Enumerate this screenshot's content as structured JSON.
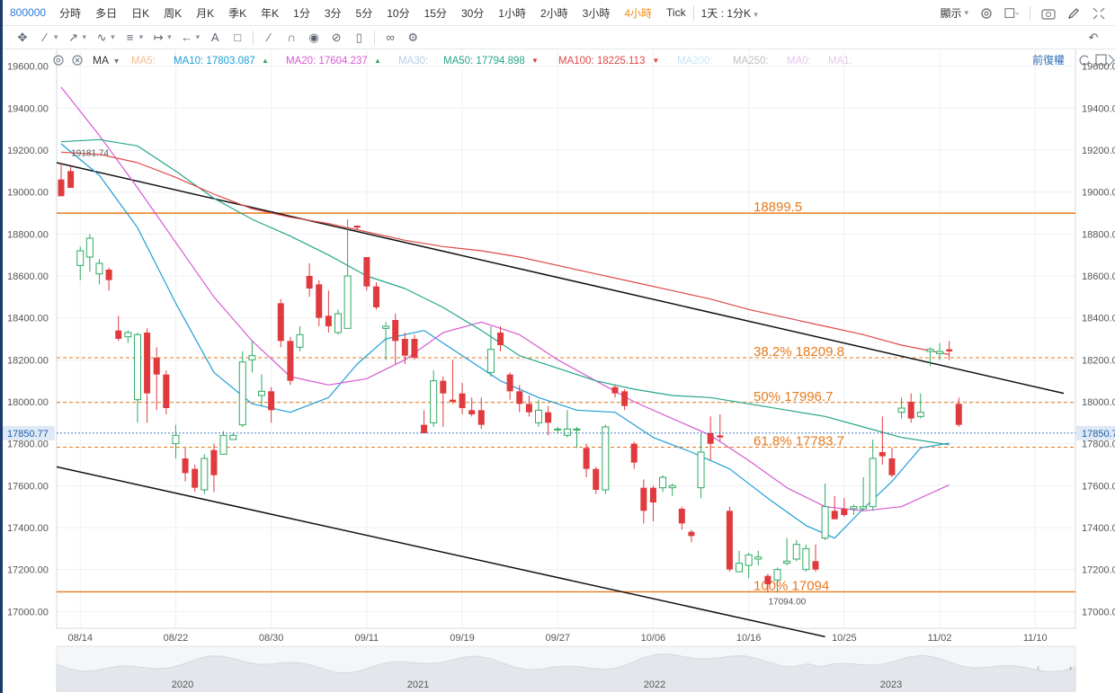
{
  "toolbar": {
    "symbol": "800000",
    "intervals": [
      "分時",
      "多日",
      "日K",
      "周K",
      "月K",
      "季K",
      "年K",
      "1分",
      "3分",
      "5分",
      "10分",
      "15分",
      "30分",
      "1小時",
      "2小時",
      "3小時",
      "4小時",
      "Tick"
    ],
    "active_interval": "4小時",
    "period_select": "1天 : 1分K",
    "display_label": "顯示"
  },
  "indicator_bar": {
    "name": "MA",
    "items": [
      {
        "label": "MA5:",
        "value": "",
        "color": "#f3c08e",
        "arrow": ""
      },
      {
        "label": "MA10:",
        "value": "17803.087",
        "color": "#1e9ed6",
        "arrow": "▲"
      },
      {
        "label": "MA20:",
        "value": "17604.237",
        "color": "#d65ad3",
        "arrow": "▲"
      },
      {
        "label": "MA30:",
        "value": "",
        "color": "#b8cde8",
        "arrow": ""
      },
      {
        "label": "MA50:",
        "value": "17794.898",
        "color": "#26a58a",
        "arrow": "▼"
      },
      {
        "label": "MA100:",
        "value": "18225.113",
        "color": "#e04848",
        "arrow": "▼"
      },
      {
        "label": "MA200:",
        "value": "",
        "color": "#c9e4f5",
        "arrow": ""
      },
      {
        "label": "MA250:",
        "value": "",
        "color": "#bfbfbf",
        "arrow": ""
      },
      {
        "label": "MA0:",
        "value": "",
        "color": "#e5c9ee",
        "arrow": ""
      },
      {
        "label": "MA1:",
        "value": "",
        "color": "#e5c9ee",
        "arrow": ""
      }
    ],
    "adjust_label": "前復權"
  },
  "chart_data": {
    "type": "candlestick",
    "ylim": [
      16920,
      19680
    ],
    "y_ticks": [
      "17000.00",
      "17200.00",
      "17400.00",
      "17600.00",
      "17800.00",
      "18000.00",
      "18200.00",
      "18400.00",
      "18600.00",
      "18800.00",
      "19000.00",
      "19200.00",
      "19400.00",
      "19600.00"
    ],
    "x_ticks": [
      "08/14",
      "08/22",
      "08/30",
      "09/11",
      "09/19",
      "09/27",
      "10/06",
      "10/16",
      "10/25",
      "11/02",
      "11/10"
    ],
    "x_tick_index": [
      2,
      12,
      22,
      32,
      42,
      52,
      62,
      72,
      82,
      92,
      102
    ],
    "current_price": "17850.77",
    "candles": [
      [
        19060,
        18980,
        19140,
        19040
      ],
      [
        19100,
        19020,
        19120,
        19060
      ],
      [
        18650,
        18720,
        18740,
        18580
      ],
      [
        18690,
        18780,
        18800,
        18620
      ],
      [
        18610,
        18660,
        18680,
        18560
      ],
      [
        18630,
        18580,
        18640,
        18530
      ],
      [
        18340,
        18300,
        18410,
        18290
      ],
      [
        18310,
        18330,
        18340,
        18280
      ],
      [
        18010,
        18320,
        18330,
        17900
      ],
      [
        18330,
        18040,
        18350,
        17900
      ],
      [
        18210,
        18130,
        18260,
        17960
      ],
      [
        18130,
        17970,
        18150,
        17940
      ],
      [
        17800,
        17840,
        17890,
        17730
      ],
      [
        17730,
        17660,
        17780,
        17620
      ],
      [
        17680,
        17590,
        17700,
        17570
      ],
      [
        17580,
        17730,
        17750,
        17560
      ],
      [
        17770,
        17650,
        17800,
        17570
      ],
      [
        17750,
        17840,
        17860,
        17750
      ],
      [
        17820,
        17840,
        17850,
        17820
      ],
      [
        17890,
        18190,
        18240,
        17880
      ],
      [
        18200,
        18220,
        18290,
        18140
      ],
      [
        18030,
        18050,
        18130,
        17980
      ],
      [
        18050,
        17960,
        18070,
        17900
      ],
      [
        18470,
        18290,
        18490,
        18260
      ],
      [
        18290,
        18100,
        18310,
        18080
      ],
      [
        18260,
        18320,
        18360,
        18240
      ],
      [
        18600,
        18540,
        18660,
        18500
      ],
      [
        18560,
        18400,
        18580,
        18360
      ],
      [
        18410,
        18360,
        18530,
        18330
      ],
      [
        18330,
        18420,
        18440,
        18320
      ],
      [
        18350,
        18600,
        18870,
        18560
      ],
      [
        18840,
        18830,
        18840,
        18820
      ],
      [
        18690,
        18550,
        18690,
        18530
      ],
      [
        18550,
        18450,
        18570,
        18440
      ],
      [
        18350,
        18360,
        18380,
        18200
      ],
      [
        18390,
        18290,
        18420,
        18180
      ],
      [
        18300,
        18220,
        18330,
        18180
      ],
      [
        18300,
        18210,
        18320,
        18200
      ],
      [
        17890,
        17850,
        17960,
        17850
      ],
      [
        17900,
        18100,
        18150,
        17880
      ],
      [
        18100,
        18040,
        18120,
        17880
      ],
      [
        18010,
        18000,
        18200,
        17990
      ],
      [
        18040,
        17970,
        18090,
        17940
      ],
      [
        17960,
        17940,
        18020,
        17930
      ],
      [
        17960,
        17890,
        18020,
        17870
      ],
      [
        18140,
        18250,
        18360,
        18120
      ],
      [
        18330,
        18270,
        18360,
        18240
      ],
      [
        18130,
        18050,
        18140,
        18010
      ],
      [
        18050,
        17990,
        18080,
        17950
      ],
      [
        17990,
        17950,
        18030,
        17930
      ],
      [
        17900,
        17960,
        18010,
        17880
      ],
      [
        17950,
        17900,
        17980,
        17840
      ],
      [
        17870,
        17870,
        17880,
        17850
      ],
      [
        17840,
        17870,
        17960,
        17830
      ],
      [
        17870,
        17870,
        17880,
        17780
      ],
      [
        17780,
        17680,
        17800,
        17640
      ],
      [
        17680,
        17580,
        17690,
        17560
      ],
      [
        17580,
        17880,
        17890,
        17560
      ],
      [
        18070,
        18040,
        18080,
        18020
      ],
      [
        18050,
        17980,
        18060,
        17960
      ],
      [
        17800,
        17710,
        17810,
        17680
      ],
      [
        17590,
        17480,
        17630,
        17420
      ],
      [
        17590,
        17520,
        17600,
        17430
      ],
      [
        17590,
        17640,
        17650,
        17570
      ],
      [
        17590,
        17600,
        17610,
        17550
      ],
      [
        17490,
        17420,
        17500,
        17390
      ],
      [
        17380,
        17360,
        17390,
        17330
      ],
      [
        17590,
        17760,
        17850,
        17540
      ],
      [
        17850,
        17800,
        17930,
        17720
      ],
      [
        17840,
        17830,
        17940,
        17810
      ],
      [
        17480,
        17200,
        17500,
        17190
      ],
      [
        17190,
        17230,
        17290,
        17190
      ],
      [
        17220,
        17270,
        17280,
        17160
      ],
      [
        17250,
        17260,
        17290,
        17220
      ],
      [
        17170,
        17130,
        17180,
        17090
      ],
      [
        17150,
        17200,
        17210,
        17090
      ],
      [
        17230,
        17240,
        17350,
        17220
      ],
      [
        17250,
        17320,
        17340,
        17240
      ],
      [
        17200,
        17300,
        17320,
        17190
      ],
      [
        17240,
        17200,
        17320,
        17190
      ],
      [
        17350,
        17500,
        17610,
        17340
      ],
      [
        17480,
        17440,
        17550,
        17440
      ],
      [
        17490,
        17460,
        17540,
        17450
      ],
      [
        17490,
        17500,
        17510,
        17460
      ],
      [
        17490,
        17500,
        17640,
        17480
      ],
      [
        17500,
        17730,
        17820,
        17480
      ],
      [
        17760,
        17740,
        17930,
        17700
      ],
      [
        17730,
        17650,
        17780,
        17640
      ],
      [
        17950,
        17970,
        18020,
        17920
      ],
      [
        18000,
        17920,
        18040,
        17900
      ],
      [
        17930,
        17950,
        18040,
        17920
      ],
      [
        18240,
        18250,
        18260,
        18170
      ],
      [
        18230,
        18240,
        18280,
        18200
      ],
      [
        18250,
        18240,
        18290,
        18200
      ],
      [
        17990,
        17890,
        18020,
        17880
      ]
    ],
    "trendlines": [
      {
        "from": [
          0,
          19140
        ],
        "to": [
          105,
          18040
        ],
        "color": "#111111"
      },
      {
        "from": [
          0,
          17690
        ],
        "to": [
          80,
          16880
        ],
        "color": "#111111"
      }
    ],
    "levels": [
      {
        "value": 18899.5,
        "label": "18899.5",
        "style": "solid",
        "color": "#e77a1e"
      },
      {
        "value": 18209.8,
        "label": "38.2% 18209.8",
        "style": "dashed",
        "color": "#e77a1e"
      },
      {
        "value": 17996.7,
        "label": "50% 17996.7",
        "style": "dashed",
        "color": "#e77a1e"
      },
      {
        "value": 17783.7,
        "label": "61.8% 17783.7",
        "style": "dashed",
        "color": "#e77a1e"
      },
      {
        "value": 17094,
        "label": "100% 17094",
        "style": "solid",
        "color": "#e77a1e"
      }
    ],
    "annotations": [
      {
        "text": "19181.74",
        "index": 2,
        "value": 19181.74
      },
      {
        "text": "17094.00",
        "index": 75,
        "value": 17094
      }
    ],
    "ma_series": [
      {
        "name": "MA10",
        "color": "#1e9ed6",
        "values": [
          [
            0,
            19230
          ],
          [
            4,
            19080
          ],
          [
            8,
            18830
          ],
          [
            12,
            18470
          ],
          [
            16,
            18140
          ],
          [
            20,
            17990
          ],
          [
            24,
            17950
          ],
          [
            28,
            18020
          ],
          [
            31,
            18180
          ],
          [
            34,
            18300
          ],
          [
            38,
            18340
          ],
          [
            42,
            18220
          ],
          [
            46,
            18100
          ],
          [
            50,
            18020
          ],
          [
            54,
            17960
          ],
          [
            58,
            17950
          ],
          [
            62,
            17830
          ],
          [
            66,
            17760
          ],
          [
            70,
            17680
          ],
          [
            74,
            17540
          ],
          [
            78,
            17410
          ],
          [
            81,
            17350
          ],
          [
            84,
            17490
          ],
          [
            87,
            17620
          ],
          [
            90,
            17780
          ],
          [
            93,
            17803
          ]
        ]
      },
      {
        "name": "MA20",
        "color": "#d65ad3",
        "values": [
          [
            0,
            19500
          ],
          [
            4,
            19270
          ],
          [
            8,
            19020
          ],
          [
            12,
            18760
          ],
          [
            16,
            18500
          ],
          [
            20,
            18290
          ],
          [
            24,
            18120
          ],
          [
            28,
            18080
          ],
          [
            32,
            18110
          ],
          [
            36,
            18200
          ],
          [
            40,
            18330
          ],
          [
            44,
            18380
          ],
          [
            48,
            18320
          ],
          [
            52,
            18200
          ],
          [
            56,
            18100
          ],
          [
            60,
            18000
          ],
          [
            64,
            17920
          ],
          [
            68,
            17840
          ],
          [
            72,
            17720
          ],
          [
            76,
            17590
          ],
          [
            80,
            17500
          ],
          [
            84,
            17480
          ],
          [
            88,
            17500
          ],
          [
            93,
            17604
          ]
        ]
      },
      {
        "name": "MA50",
        "color": "#26a58a",
        "values": [
          [
            0,
            19240
          ],
          [
            4,
            19250
          ],
          [
            8,
            19220
          ],
          [
            12,
            19100
          ],
          [
            16,
            18970
          ],
          [
            20,
            18870
          ],
          [
            24,
            18790
          ],
          [
            28,
            18700
          ],
          [
            32,
            18600
          ],
          [
            36,
            18540
          ],
          [
            40,
            18450
          ],
          [
            44,
            18340
          ],
          [
            48,
            18220
          ],
          [
            52,
            18160
          ],
          [
            56,
            18100
          ],
          [
            60,
            18060
          ],
          [
            64,
            18030
          ],
          [
            68,
            18020
          ],
          [
            72,
            17990
          ],
          [
            76,
            17960
          ],
          [
            80,
            17930
          ],
          [
            84,
            17880
          ],
          [
            88,
            17830
          ],
          [
            93,
            17795
          ]
        ]
      },
      {
        "name": "MA100",
        "color": "#e04848",
        "values": [
          [
            0,
            19190
          ],
          [
            4,
            19180
          ],
          [
            8,
            19140
          ],
          [
            12,
            19070
          ],
          [
            16,
            18990
          ],
          [
            20,
            18920
          ],
          [
            24,
            18880
          ],
          [
            28,
            18850
          ],
          [
            32,
            18810
          ],
          [
            36,
            18770
          ],
          [
            40,
            18740
          ],
          [
            44,
            18720
          ],
          [
            48,
            18690
          ],
          [
            52,
            18650
          ],
          [
            56,
            18610
          ],
          [
            60,
            18570
          ],
          [
            64,
            18530
          ],
          [
            68,
            18490
          ],
          [
            72,
            18440
          ],
          [
            76,
            18400
          ],
          [
            80,
            18360
          ],
          [
            84,
            18320
          ],
          [
            88,
            18270
          ],
          [
            93,
            18225
          ]
        ]
      }
    ],
    "navigator_labels": [
      "2020",
      "2021",
      "2022",
      "2023"
    ]
  }
}
